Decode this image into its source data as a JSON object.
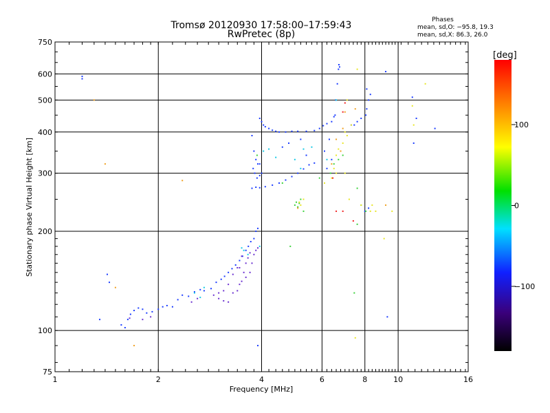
{
  "chart_data": {
    "type": "scatter",
    "title": "Tromsø 20120930 17:58:00–17:59:43",
    "subtitle": "RwPretec (8p)",
    "xlabel": "Frequency [MHz]",
    "ylabel": "Stationary phase Virtual Height [km]",
    "x_scale": "log",
    "y_scale": "log",
    "xlim": [
      1,
      16
    ],
    "ylim": [
      75,
      750
    ],
    "x_ticks": [
      "1",
      "2",
      "4",
      "6",
      "8",
      "10",
      "16"
    ],
    "y_ticks": [
      "75",
      "100",
      "200",
      "300",
      "400",
      "500",
      "600",
      "750"
    ],
    "grid": true,
    "phases_box": {
      "title": "Phases",
      "line1": "mean, sd,O: −95.8, 19.3",
      "line2": "mean, sd,X: 86.3, 26.0"
    },
    "colorbar": {
      "label": "[deg]",
      "range": [
        -180,
        180
      ],
      "ticks": [
        "100",
        "0",
        "−100"
      ]
    },
    "colors": {
      "blue": "#1a3cff",
      "violet": "#6a2fd0",
      "cyan": "#13c9e6",
      "green": "#3cd23c",
      "yellow": "#e8e626",
      "orange": "#f0a020",
      "red": "#f02020"
    },
    "series": [
      {
        "color_group": "blue",
        "points": [
          [
            1.2,
            590
          ],
          [
            1.2,
            580
          ],
          [
            1.56,
            104
          ],
          [
            1.6,
            102
          ],
          [
            1.63,
            108
          ],
          [
            1.66,
            112
          ],
          [
            1.7,
            115
          ],
          [
            1.75,
            117
          ],
          [
            1.8,
            116
          ],
          [
            1.85,
            113
          ],
          [
            1.92,
            114
          ],
          [
            2.0,
            116
          ],
          [
            2.06,
            118
          ],
          [
            2.12,
            119
          ],
          [
            2.2,
            118
          ],
          [
            2.28,
            124
          ],
          [
            2.35,
            128
          ],
          [
            2.45,
            127
          ],
          [
            2.55,
            131
          ],
          [
            2.65,
            133
          ],
          [
            2.72,
            132
          ],
          [
            2.85,
            134
          ],
          [
            2.95,
            140
          ],
          [
            3.05,
            143
          ],
          [
            3.12,
            146
          ],
          [
            3.2,
            150
          ],
          [
            3.28,
            154
          ],
          [
            3.36,
            158
          ],
          [
            3.45,
            163
          ],
          [
            3.52,
            168
          ],
          [
            3.6,
            175
          ],
          [
            3.66,
            180
          ],
          [
            3.72,
            186
          ],
          [
            3.8,
            190
          ],
          [
            3.85,
            200
          ],
          [
            3.9,
            204
          ],
          [
            3.75,
            270
          ],
          [
            3.85,
            272
          ],
          [
            3.95,
            271
          ],
          [
            4.1,
            273
          ],
          [
            4.3,
            276
          ],
          [
            4.5,
            280
          ],
          [
            4.7,
            286
          ],
          [
            4.9,
            293
          ],
          [
            5.1,
            300
          ],
          [
            5.3,
            309
          ],
          [
            5.5,
            318
          ],
          [
            5.7,
            322
          ],
          [
            3.75,
            390
          ],
          [
            3.8,
            350
          ],
          [
            3.85,
            330
          ],
          [
            3.9,
            320
          ],
          [
            3.95,
            320
          ],
          [
            3.78,
            310
          ],
          [
            3.82,
            300
          ],
          [
            3.88,
            290
          ],
          [
            3.95,
            295
          ],
          [
            4.0,
            300
          ],
          [
            3.95,
            440
          ],
          [
            4.0,
            430
          ],
          [
            4.05,
            420
          ],
          [
            4.1,
            415
          ],
          [
            4.2,
            410
          ],
          [
            4.3,
            405
          ],
          [
            4.4,
            402
          ],
          [
            4.5,
            400
          ],
          [
            4.7,
            400
          ],
          [
            4.9,
            402
          ],
          [
            5.1,
            402
          ],
          [
            5.4,
            402
          ],
          [
            5.7,
            404
          ],
          [
            5.9,
            410
          ],
          [
            6.05,
            418
          ],
          [
            6.2,
            424
          ],
          [
            6.4,
            430
          ],
          [
            6.5,
            445
          ],
          [
            6.55,
            450
          ],
          [
            6.58,
            500
          ],
          [
            6.65,
            560
          ],
          [
            6.7,
            620
          ],
          [
            6.72,
            640
          ],
          [
            6.75,
            630
          ],
          [
            7.3,
            420
          ],
          [
            7.45,
            420
          ],
          [
            7.6,
            430
          ],
          [
            7.8,
            440
          ],
          [
            8.05,
            450
          ],
          [
            8.1,
            470
          ],
          [
            8.2,
            500
          ],
          [
            8.3,
            520
          ],
          [
            8.1,
            540
          ],
          [
            8.0,
            230
          ],
          [
            8.2,
            235
          ],
          [
            6.2,
            310
          ],
          [
            6.4,
            330
          ],
          [
            6.3,
            380
          ],
          [
            6.1,
            350
          ],
          [
            4.6,
            360
          ],
          [
            4.8,
            370
          ],
          [
            5.2,
            380
          ],
          [
            5.4,
            340
          ],
          [
            9.2,
            610
          ],
          [
            11.0,
            510
          ],
          [
            11.3,
            440
          ],
          [
            12.8,
            410
          ],
          [
            11.1,
            370
          ],
          [
            9.3,
            110
          ],
          [
            3.9,
            90
          ],
          [
            1.42,
            148
          ],
          [
            1.44,
            140
          ],
          [
            1.35,
            108
          ]
        ]
      },
      {
        "color_group": "violet",
        "points": [
          [
            2.9,
            128
          ],
          [
            3.0,
            125
          ],
          [
            3.1,
            123
          ],
          [
            3.2,
            122
          ],
          [
            3.3,
            130
          ],
          [
            3.4,
            132
          ],
          [
            3.45,
            138
          ],
          [
            3.5,
            141
          ],
          [
            3.55,
            150
          ],
          [
            3.6,
            160
          ],
          [
            3.65,
            166
          ],
          [
            3.7,
            172
          ],
          [
            3.3,
            148
          ],
          [
            3.4,
            155
          ],
          [
            3.2,
            138
          ],
          [
            3.1,
            132
          ],
          [
            3.0,
            130
          ],
          [
            3.6,
            145
          ],
          [
            3.7,
            150
          ],
          [
            3.75,
            160
          ],
          [
            3.8,
            170
          ],
          [
            3.85,
            175
          ],
          [
            3.9,
            178
          ],
          [
            3.5,
            168
          ],
          [
            3.45,
            155
          ],
          [
            1.8,
            108
          ],
          [
            1.9,
            110
          ],
          [
            1.65,
            109
          ],
          [
            2.5,
            122
          ],
          [
            2.6,
            125
          ]
        ]
      },
      {
        "color_group": "cyan",
        "points": [
          [
            2.55,
            130
          ],
          [
            2.65,
            126
          ],
          [
            2.72,
            135
          ],
          [
            3.55,
            175
          ],
          [
            3.65,
            170
          ],
          [
            4.05,
            350
          ],
          [
            4.2,
            355
          ],
          [
            5.0,
            330
          ],
          [
            5.2,
            310
          ],
          [
            5.6,
            360
          ],
          [
            6.2,
            330
          ],
          [
            6.6,
            500
          ],
          [
            5.3,
            355
          ],
          [
            4.4,
            335
          ],
          [
            3.95,
            180
          ],
          [
            3.5,
            178
          ]
        ]
      },
      {
        "color_group": "green",
        "points": [
          [
            5.0,
            240
          ],
          [
            5.15,
            243
          ],
          [
            5.2,
            250
          ],
          [
            5.05,
            245
          ],
          [
            5.1,
            237
          ],
          [
            5.3,
            230
          ],
          [
            7.8,
            240
          ],
          [
            8.05,
            230
          ],
          [
            6.35,
            300
          ],
          [
            6.5,
            320
          ],
          [
            6.7,
            330
          ],
          [
            6.9,
            340
          ],
          [
            5.9,
            290
          ],
          [
            7.6,
            270
          ],
          [
            4.6,
            280
          ],
          [
            3.88,
            340
          ],
          [
            4.85,
            180
          ],
          [
            7.6,
            210
          ],
          [
            7.45,
            130
          ]
        ]
      },
      {
        "color_group": "yellow",
        "points": [
          [
            5.2,
            240
          ],
          [
            5.3,
            250
          ],
          [
            5.15,
            245
          ],
          [
            6.6,
            340
          ],
          [
            6.7,
            355
          ],
          [
            6.9,
            370
          ],
          [
            7.1,
            390
          ],
          [
            7.3,
            420
          ],
          [
            7.0,
            400
          ],
          [
            6.6,
            300
          ],
          [
            6.4,
            290
          ],
          [
            6.5,
            310
          ],
          [
            6.1,
            280
          ],
          [
            7.1,
            500
          ],
          [
            7.6,
            620
          ],
          [
            7.8,
            240
          ],
          [
            8.3,
            230
          ],
          [
            8.4,
            240
          ],
          [
            8.6,
            230
          ],
          [
            9.1,
            190
          ],
          [
            9.6,
            230
          ],
          [
            11.0,
            480
          ],
          [
            12.0,
            560
          ],
          [
            11.1,
            420
          ],
          [
            7.2,
            250
          ],
          [
            7.5,
            95
          ],
          [
            7.0,
            300
          ]
        ]
      },
      {
        "color_group": "orange",
        "points": [
          [
            6.6,
            380
          ],
          [
            6.8,
            350
          ],
          [
            6.4,
            320
          ],
          [
            6.9,
            410
          ],
          [
            5.1,
            235
          ],
          [
            7.0,
            460
          ],
          [
            7.5,
            470
          ],
          [
            9.2,
            240
          ],
          [
            1.4,
            320
          ],
          [
            2.35,
            285
          ],
          [
            1.3,
            500
          ],
          [
            1.7,
            90
          ],
          [
            1.5,
            135
          ]
        ]
      },
      {
        "color_group": "red",
        "points": [
          [
            6.6,
            230
          ],
          [
            6.9,
            460
          ],
          [
            6.45,
            290
          ],
          [
            7.0,
            490
          ],
          [
            6.9,
            230
          ],
          [
            7.4,
            215
          ]
        ]
      }
    ]
  }
}
